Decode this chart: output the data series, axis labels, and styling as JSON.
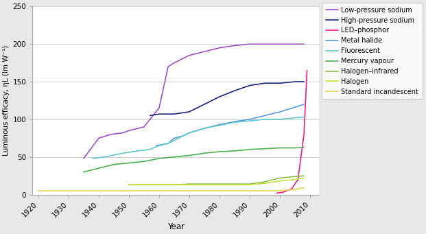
{
  "xlabel": "Year",
  "ylabel": "Luminous efficacy, ηL (lm W⁻¹)",
  "ylim": [
    0,
    250
  ],
  "xlim": [
    1918,
    2013
  ],
  "xticks": [
    1920,
    1930,
    1940,
    1950,
    1960,
    1970,
    1980,
    1990,
    2000,
    2010
  ],
  "yticks": [
    0,
    50,
    100,
    150,
    200,
    250
  ],
  "background_color": "#e8e8e8",
  "plot_bg_color": "#ffffff",
  "series": [
    {
      "label": "Low-pressure sodium",
      "color": "#a050c8",
      "linewidth": 1.2,
      "data": {
        "x": [
          1935,
          1940,
          1944,
          1948,
          1950,
          1955,
          1960,
          1963,
          1965,
          1970,
          1975,
          1980,
          1985,
          1990,
          1995,
          2000,
          2008
        ],
        "y": [
          48,
          75,
          80,
          82,
          85,
          90,
          115,
          170,
          175,
          185,
          190,
          195,
          198,
          200,
          200,
          200,
          200
        ]
      }
    },
    {
      "label": "High-pressure sodium",
      "color": "#1a237e",
      "linewidth": 1.2,
      "data": {
        "x": [
          1957,
          1960,
          1963,
          1965,
          1970,
          1975,
          1980,
          1985,
          1990,
          1995,
          2000,
          2005,
          2008
        ],
        "y": [
          105,
          107,
          107,
          107,
          110,
          120,
          130,
          138,
          145,
          148,
          148,
          150,
          150
        ]
      }
    },
    {
      "label": "LED–phosphor",
      "color": "#e91e8c",
      "linewidth": 1.2,
      "data": {
        "x": [
          1999,
          2001,
          2004,
          2006,
          2008,
          2009
        ],
        "y": [
          2,
          3,
          8,
          20,
          80,
          165
        ]
      }
    },
    {
      "label": "Metal halide",
      "color": "#5b9bd5",
      "linewidth": 1.2,
      "data": {
        "x": [
          1959,
          1963,
          1965,
          1968,
          1970,
          1975,
          1980,
          1985,
          1990,
          1995,
          2000,
          2005,
          2008
        ],
        "y": [
          65,
          68,
          75,
          78,
          82,
          88,
          93,
          97,
          100,
          105,
          110,
          116,
          120
        ]
      }
    },
    {
      "label": "Fluorescent",
      "color": "#5fc8d0",
      "linewidth": 1.2,
      "data": {
        "x": [
          1938,
          1942,
          1948,
          1953,
          1957,
          1960,
          1963,
          1965,
          1968,
          1970,
          1975,
          1980,
          1985,
          1990,
          1995,
          2000,
          2005,
          2008
        ],
        "y": [
          48,
          50,
          55,
          58,
          60,
          65,
          68,
          72,
          78,
          82,
          88,
          92,
          96,
          98,
          100,
          100,
          102,
          103
        ]
      }
    },
    {
      "label": "Mercury vapour",
      "color": "#4caf50",
      "linewidth": 1.2,
      "data": {
        "x": [
          1935,
          1940,
          1945,
          1950,
          1955,
          1960,
          1965,
          1970,
          1975,
          1980,
          1985,
          1990,
          1995,
          2000,
          2005,
          2008
        ],
        "y": [
          30,
          35,
          40,
          42,
          44,
          48,
          50,
          52,
          55,
          57,
          58,
          60,
          61,
          62,
          62,
          63
        ]
      }
    },
    {
      "label": "Halogen–infrared",
      "color": "#8bc34a",
      "linewidth": 1.2,
      "data": {
        "x": [
          1950,
          1955,
          1960,
          1965,
          1970,
          1975,
          1980,
          1985,
          1990,
          1995,
          2000,
          2005,
          2008
        ],
        "y": [
          13,
          13,
          13,
          13,
          14,
          14,
          14,
          14,
          14,
          17,
          22,
          24,
          25
        ]
      }
    },
    {
      "label": "Halogen",
      "color": "#c5e03a",
      "linewidth": 1.2,
      "data": {
        "x": [
          1950,
          1955,
          1960,
          1965,
          1970,
          1975,
          1980,
          1985,
          1990,
          1995,
          2000,
          2005,
          2008
        ],
        "y": [
          13,
          13,
          13,
          13,
          13,
          13,
          13,
          13,
          13,
          15,
          18,
          20,
          22
        ]
      }
    },
    {
      "label": "Standard incandescent",
      "color": "#e8d44d",
      "linewidth": 1.2,
      "data": {
        "x": [
          1920,
          1925,
          1930,
          1940,
          1950,
          1960,
          1970,
          1980,
          1990,
          2000,
          2005,
          2008
        ],
        "y": [
          5,
          5,
          5,
          5,
          5,
          5,
          5,
          5,
          5,
          5,
          7,
          9
        ]
      }
    }
  ]
}
